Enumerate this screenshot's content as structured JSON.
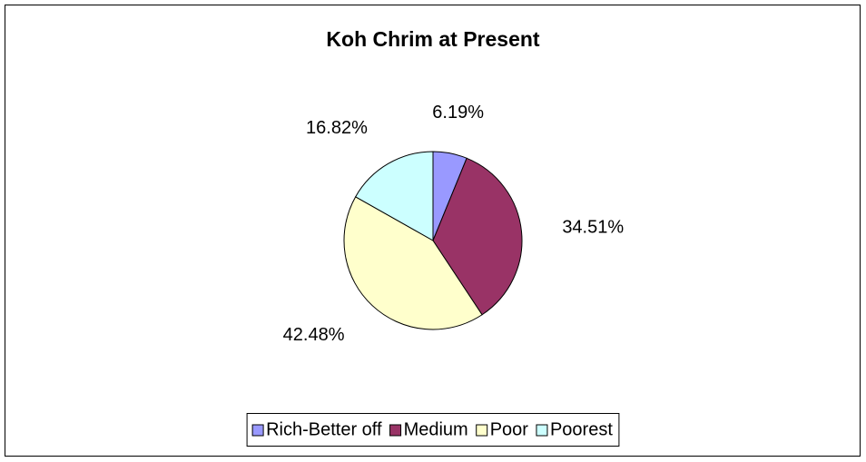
{
  "chart_data": {
    "type": "pie",
    "title": "Koh Chrim at Present",
    "categories": [
      "Rich-Better off",
      "Medium",
      "Poor",
      "Poorest"
    ],
    "values": [
      6.19,
      34.51,
      42.48,
      16.82
    ],
    "value_labels": [
      "6.19%",
      "34.51%",
      "42.48%",
      "16.82%"
    ],
    "colors": [
      "#9999ff",
      "#993366",
      "#ffffcc",
      "#ccffff"
    ],
    "legend": "bottom"
  }
}
